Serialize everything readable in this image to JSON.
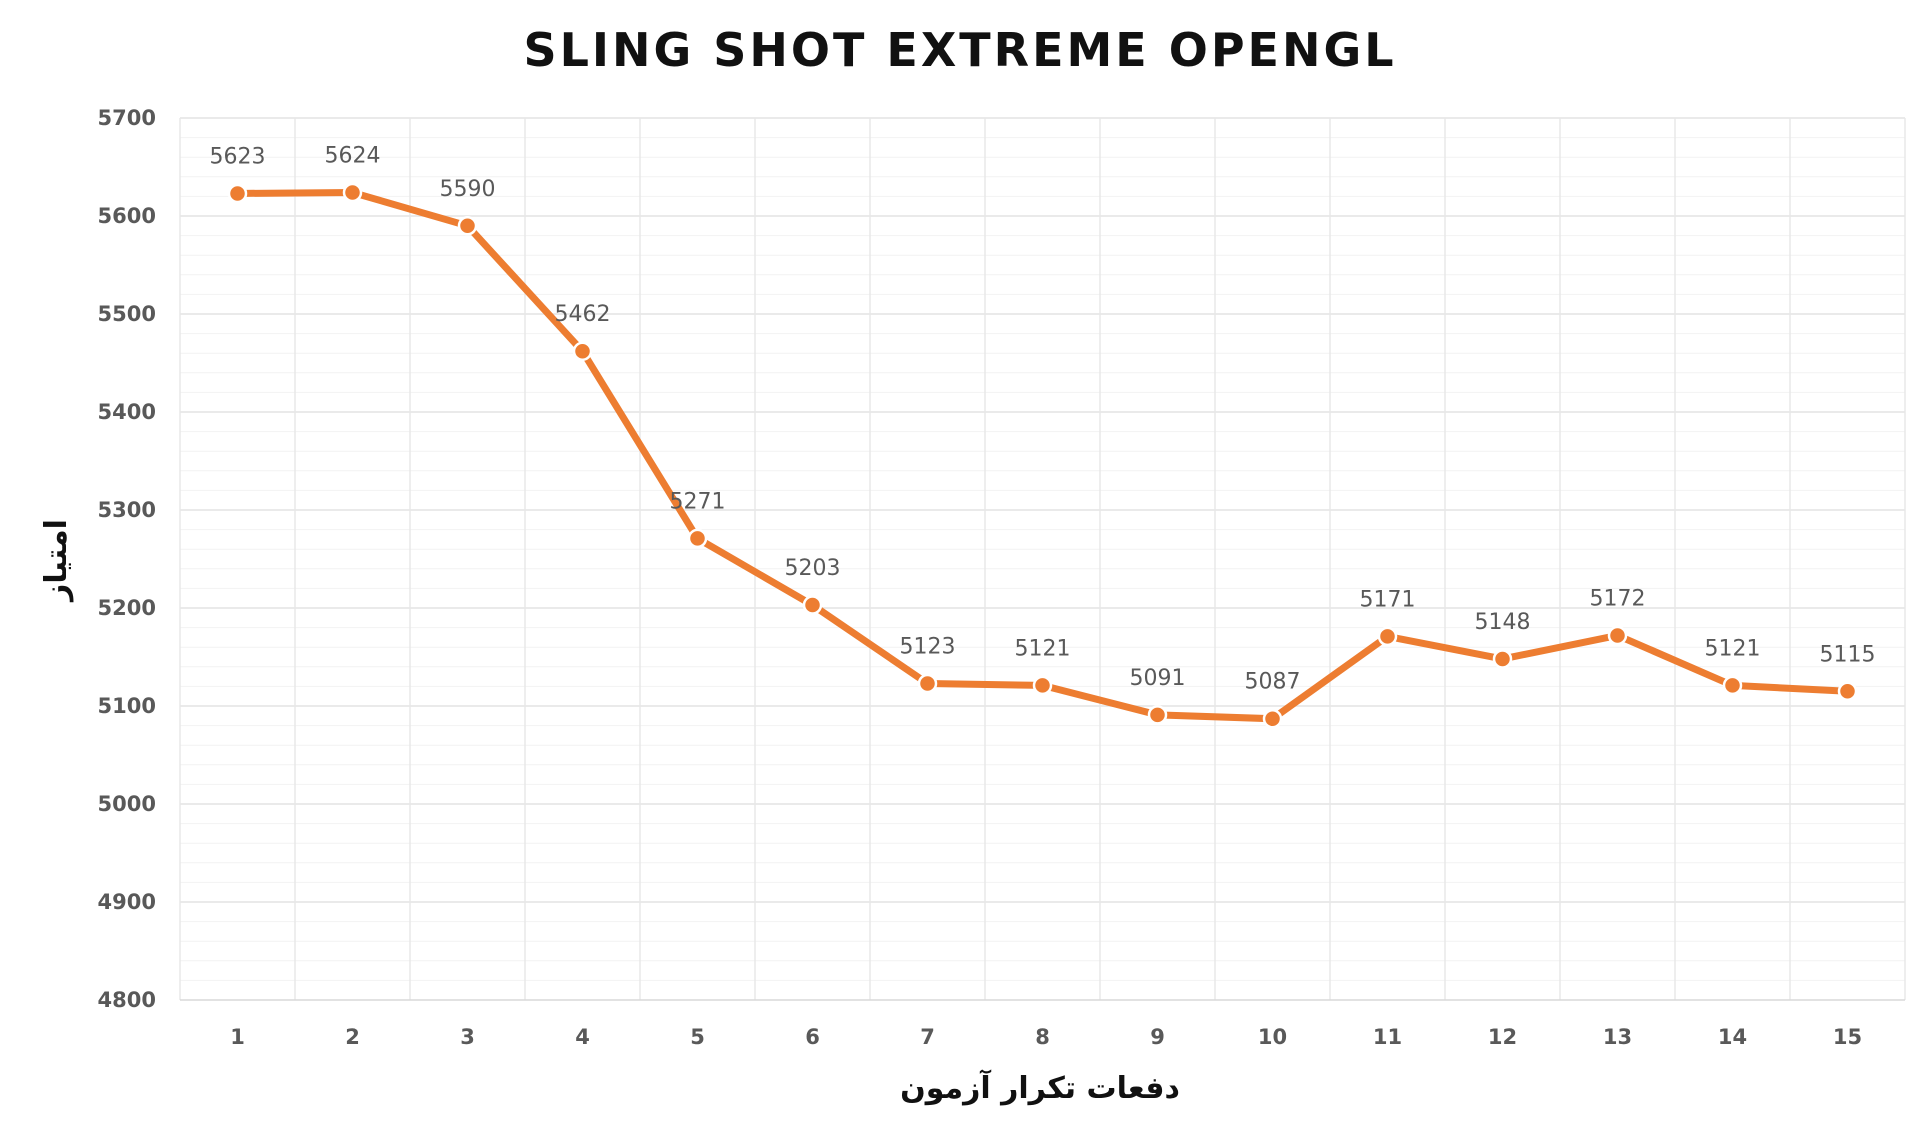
{
  "chart_data": {
    "type": "line",
    "title": "SLING SHOT EXTREME OPENGL",
    "xlabel": "دفعات تکرار آزمون",
    "ylabel": "امتیاز",
    "categories": [
      "1",
      "2",
      "3",
      "4",
      "5",
      "6",
      "7",
      "8",
      "9",
      "10",
      "11",
      "12",
      "13",
      "14",
      "15"
    ],
    "series": [
      {
        "values": [
          5623,
          5624,
          5590,
          5462,
          5271,
          5203,
          5123,
          5121,
          5091,
          5087,
          5171,
          5148,
          5172,
          5121,
          5115
        ],
        "color": "#ed7d31"
      }
    ],
    "ylim": [
      4800,
      5700
    ],
    "yticks": [
      4800,
      4900,
      5000,
      5100,
      5200,
      5300,
      5400,
      5500,
      5600,
      5700
    ],
    "data_labels": true,
    "grid": true,
    "legend": "none"
  }
}
